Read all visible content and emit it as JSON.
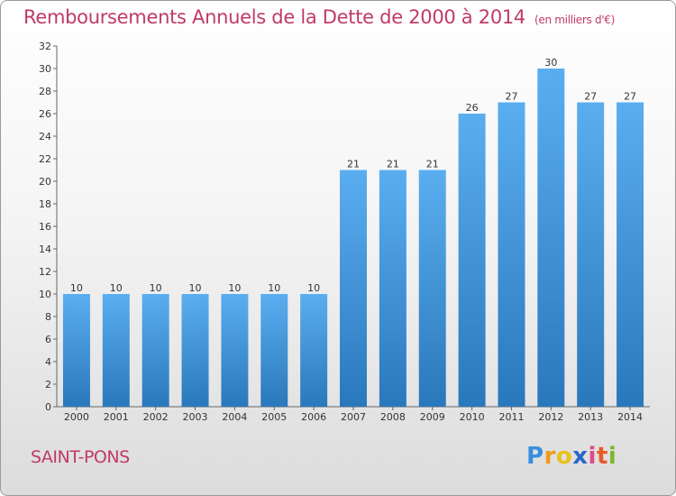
{
  "header": {
    "title": "Remboursements Annuels de la Dette de 2000 à 2014",
    "unit": "(en milliers d'€)"
  },
  "footer": {
    "commune": "SAINT-PONS",
    "logo": "Proxiti"
  },
  "colors": {
    "title": "#c03a6a",
    "bar_top": "#5aaef0",
    "bar_bottom": "#2a78bc"
  },
  "chart_data": {
    "type": "bar",
    "title": "Remboursements Annuels de la Dette de 2000 à 2014",
    "subtitle": "(en milliers d'€)",
    "xlabel": "",
    "ylabel": "",
    "categories": [
      "2000",
      "2001",
      "2002",
      "2003",
      "2004",
      "2005",
      "2006",
      "2007",
      "2008",
      "2009",
      "2010",
      "2011",
      "2012",
      "2013",
      "2014"
    ],
    "values": [
      10,
      10,
      10,
      10,
      10,
      10,
      10,
      21,
      21,
      21,
      26,
      27,
      30,
      27,
      27
    ],
    "data_labels": [
      "10",
      "10",
      "10",
      "10",
      "10",
      "10",
      "10",
      "21",
      "21",
      "21",
      "26",
      "27",
      "30",
      "27",
      "27"
    ],
    "ylim": [
      0,
      32
    ],
    "yticks": [
      "0",
      "2",
      "4",
      "6",
      "8",
      "10",
      "12",
      "14",
      "16",
      "18",
      "20",
      "22",
      "24",
      "26",
      "28",
      "30",
      "32"
    ],
    "grid": false,
    "legend": "none"
  }
}
